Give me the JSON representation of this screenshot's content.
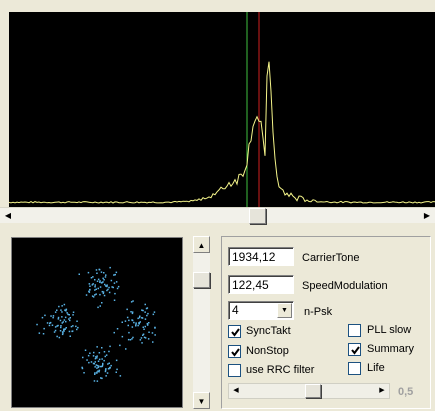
{
  "spectrum": {
    "background": "#000000",
    "trace_color": "#f5f58a",
    "marker_green": "#3fbf3f",
    "marker_red": "#d02020"
  },
  "constellation": {
    "background": "#000000",
    "dot_color": "#5ab4e6"
  },
  "controls": {
    "carrier_tone": {
      "value": "1934,12",
      "label": "CarrierTone"
    },
    "speed_modulation": {
      "value": "122,45",
      "label": "SpeedModulation"
    },
    "npsk": {
      "value": "4",
      "label": "n-Psk"
    },
    "checkboxes": [
      {
        "label": "SyncTakt",
        "checked": true
      },
      {
        "label": "NonStop",
        "checked": true
      },
      {
        "label": "use RRC filter",
        "checked": false
      },
      {
        "label": "PLL slow",
        "checked": false
      },
      {
        "label": "Summary",
        "checked": true
      },
      {
        "label": "Life",
        "checked": false
      }
    ],
    "slider_value": "0,5"
  }
}
